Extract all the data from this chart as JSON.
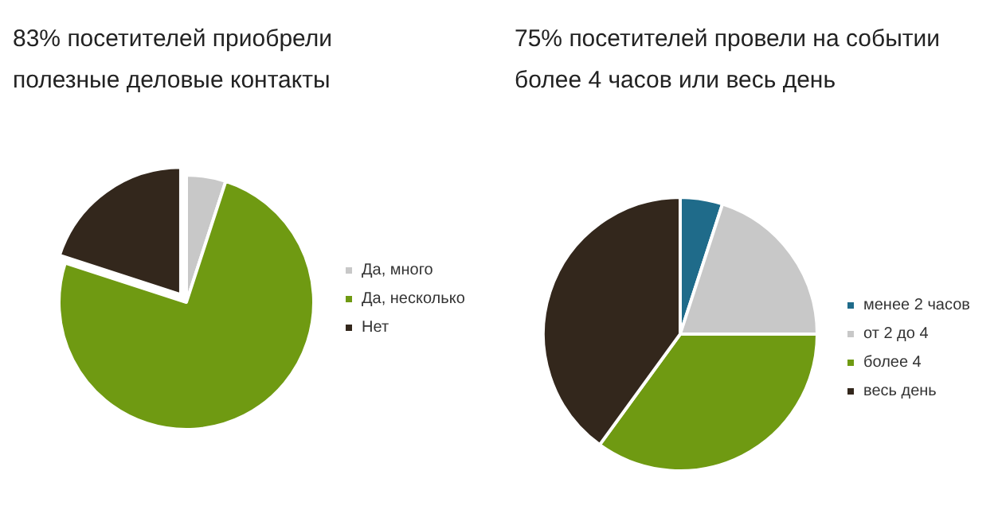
{
  "chart_data": [
    {
      "type": "pie",
      "title": "83% посетителей приобрели полезные деловые контакты",
      "categories": [
        "Да, много",
        "Да, несколько",
        "Нет"
      ],
      "values": [
        5,
        75,
        20
      ],
      "colors": [
        "#c8c8c8",
        "#6f9a12",
        "#33271c"
      ],
      "legend": "right"
    },
    {
      "type": "pie",
      "title": "75% посетителей провели на событии более 4 часов или весь день",
      "categories": [
        "менее 2 часов",
        "от 2 до 4",
        "более 4",
        "весь день"
      ],
      "values": [
        5,
        20,
        35,
        40
      ],
      "colors": [
        "#1f6b8a",
        "#c8c8c8",
        "#6f9a12",
        "#33271c"
      ],
      "legend": "right"
    }
  ]
}
